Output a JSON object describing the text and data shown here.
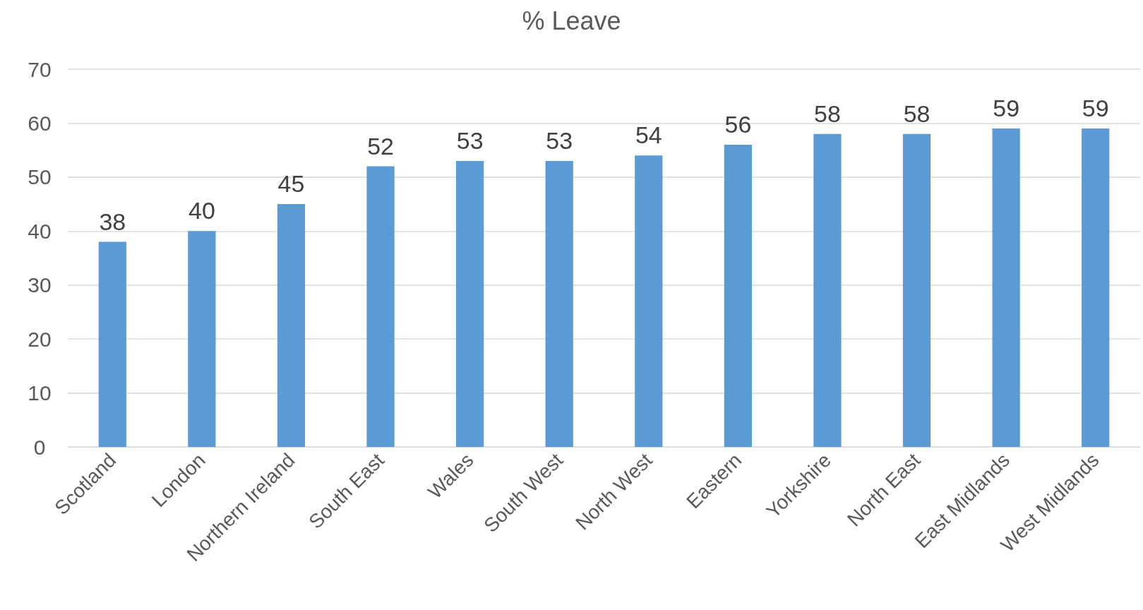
{
  "chart_data": {
    "type": "bar",
    "title": "% Leave",
    "categories": [
      "Scotland",
      "London",
      "Northern Ireland",
      "South East",
      "Wales",
      "South West",
      "North West",
      "Eastern",
      "Yorkshire",
      "North East",
      "East Midlands",
      "West Midlands"
    ],
    "values": [
      38,
      40,
      45,
      52,
      53,
      53,
      54,
      56,
      58,
      58,
      59,
      59
    ],
    "color": "#5b9bd5",
    "ylim": [
      0,
      70
    ],
    "yticks": [
      0,
      10,
      20,
      30,
      40,
      50,
      60,
      70
    ],
    "grid": "y",
    "data_labels": true
  }
}
